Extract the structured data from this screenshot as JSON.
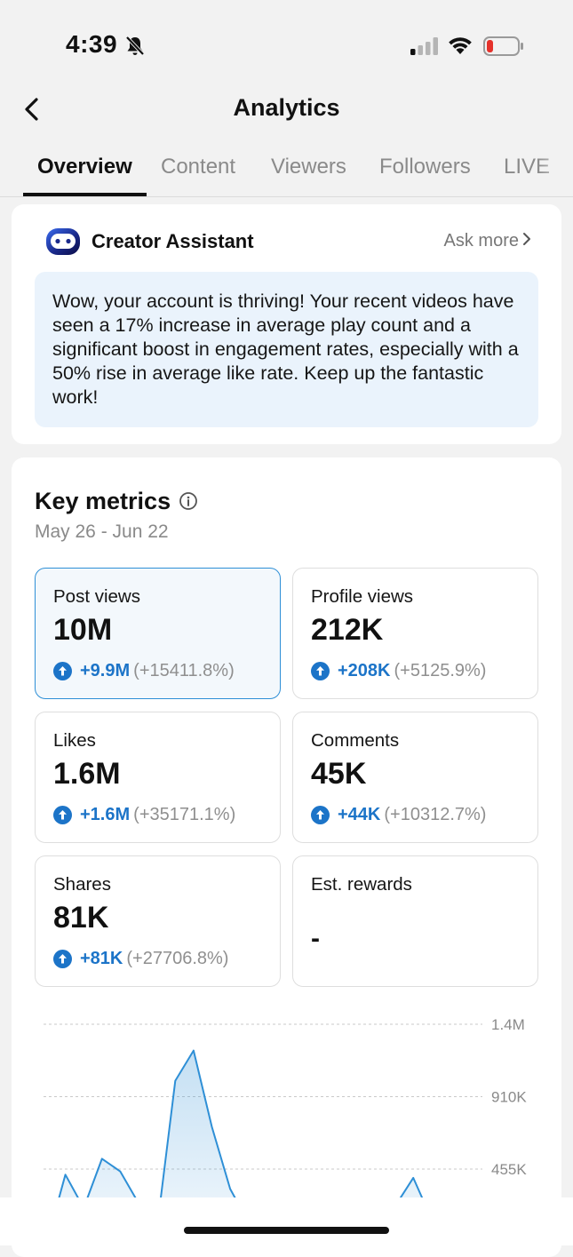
{
  "status": {
    "time": "4:39"
  },
  "nav": {
    "title": "Analytics"
  },
  "tabs": [
    {
      "label": "Overview"
    },
    {
      "label": "Content"
    },
    {
      "label": "Viewers"
    },
    {
      "label": "Followers"
    },
    {
      "label": "LIVE"
    }
  ],
  "assistant": {
    "title": "Creator Assistant",
    "ask_more": "Ask more",
    "message": "Wow, your account is thriving! Your recent videos have seen a 17% increase in average play count and a significant boost in engagement rates, especially with a 50% rise in average like rate. Keep up the fantastic work!"
  },
  "key_metrics": {
    "title": "Key metrics",
    "date_range": "May 26 - Jun 22",
    "metrics": [
      {
        "label": "Post views",
        "value": "10M",
        "change": "+9.9M",
        "percent": "(+15411.8%)",
        "selected": true
      },
      {
        "label": "Profile views",
        "value": "212K",
        "change": "+208K",
        "percent": "(+5125.9%)"
      },
      {
        "label": "Likes",
        "value": "1.6M",
        "change": "+1.6M",
        "percent": "(+35171.1%)"
      },
      {
        "label": "Comments",
        "value": "45K",
        "change": "+44K",
        "percent": "(+10312.7%)"
      },
      {
        "label": "Shares",
        "value": "81K",
        "change": "+81K",
        "percent": "(+27706.8%)"
      },
      {
        "label": "Est. rewards",
        "value": "-"
      }
    ]
  },
  "chart_data": {
    "type": "area",
    "y_ticks": [
      "1.4M",
      "910K",
      "455K"
    ],
    "y_tick_values": [
      1365000,
      910000,
      455000
    ],
    "color": "#2e8fd6",
    "values": [
      0,
      420000,
      210000,
      520000,
      440000,
      240000,
      80000,
      1010000,
      1200000,
      720000,
      330000,
      120000,
      0,
      0,
      0,
      0,
      110000,
      170000,
      180000,
      220000,
      400000,
      140000,
      0,
      0
    ]
  },
  "colors": {
    "accent": "#1c74c8",
    "selected_border": "#2e8fd6",
    "bubble": "#eaf3fc"
  }
}
